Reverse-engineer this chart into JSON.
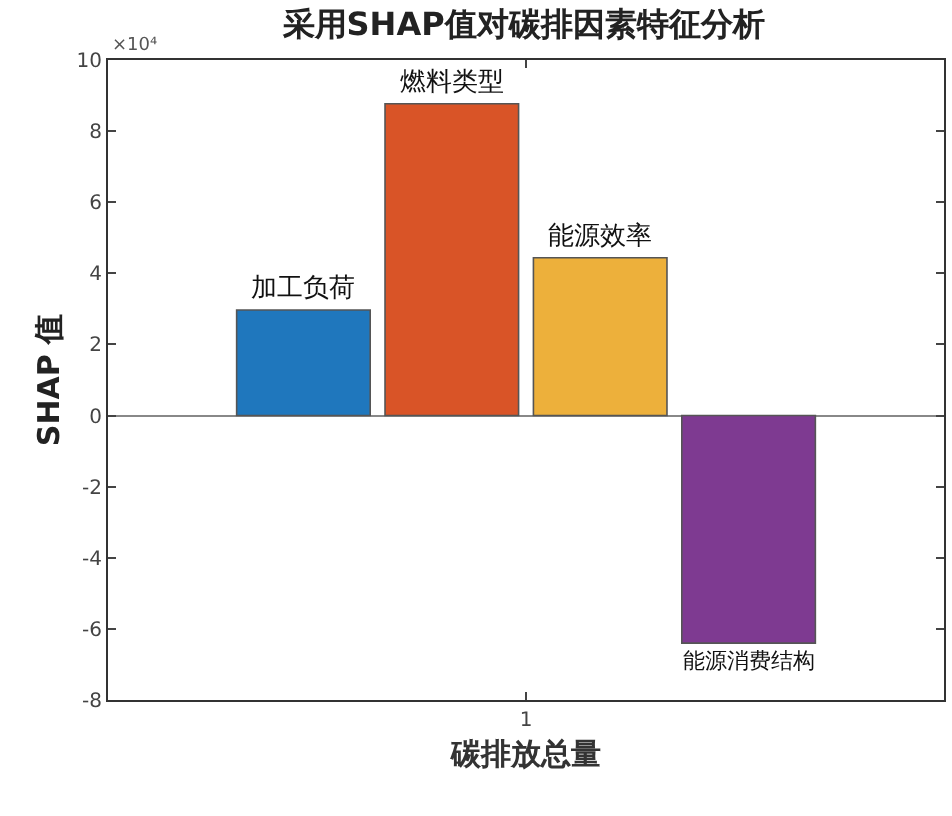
{
  "chart_data": {
    "type": "bar",
    "title": "采用SHAP值对碳排因素特征分析",
    "xlabel": "碳排放总量",
    "ylabel": "SHAP 值",
    "categories": [
      "1"
    ],
    "series": [
      {
        "name": "加工负荷",
        "color": "#1f77bd",
        "values": [
          2.97
        ]
      },
      {
        "name": "燃料类型",
        "color": "#d95427",
        "values": [
          8.77
        ]
      },
      {
        "name": "能源效率",
        "color": "#edb03b",
        "values": [
          4.44
        ]
      },
      {
        "name": "能源消费结构",
        "color": "#7e3a91",
        "values": [
          -6.4
        ]
      }
    ],
    "ylim": [
      -8,
      10
    ],
    "yticks": [
      -8,
      -6,
      -4,
      -2,
      0,
      2,
      4,
      6,
      8,
      10
    ],
    "annotations": [
      "×10⁴"
    ],
    "legend": false
  }
}
